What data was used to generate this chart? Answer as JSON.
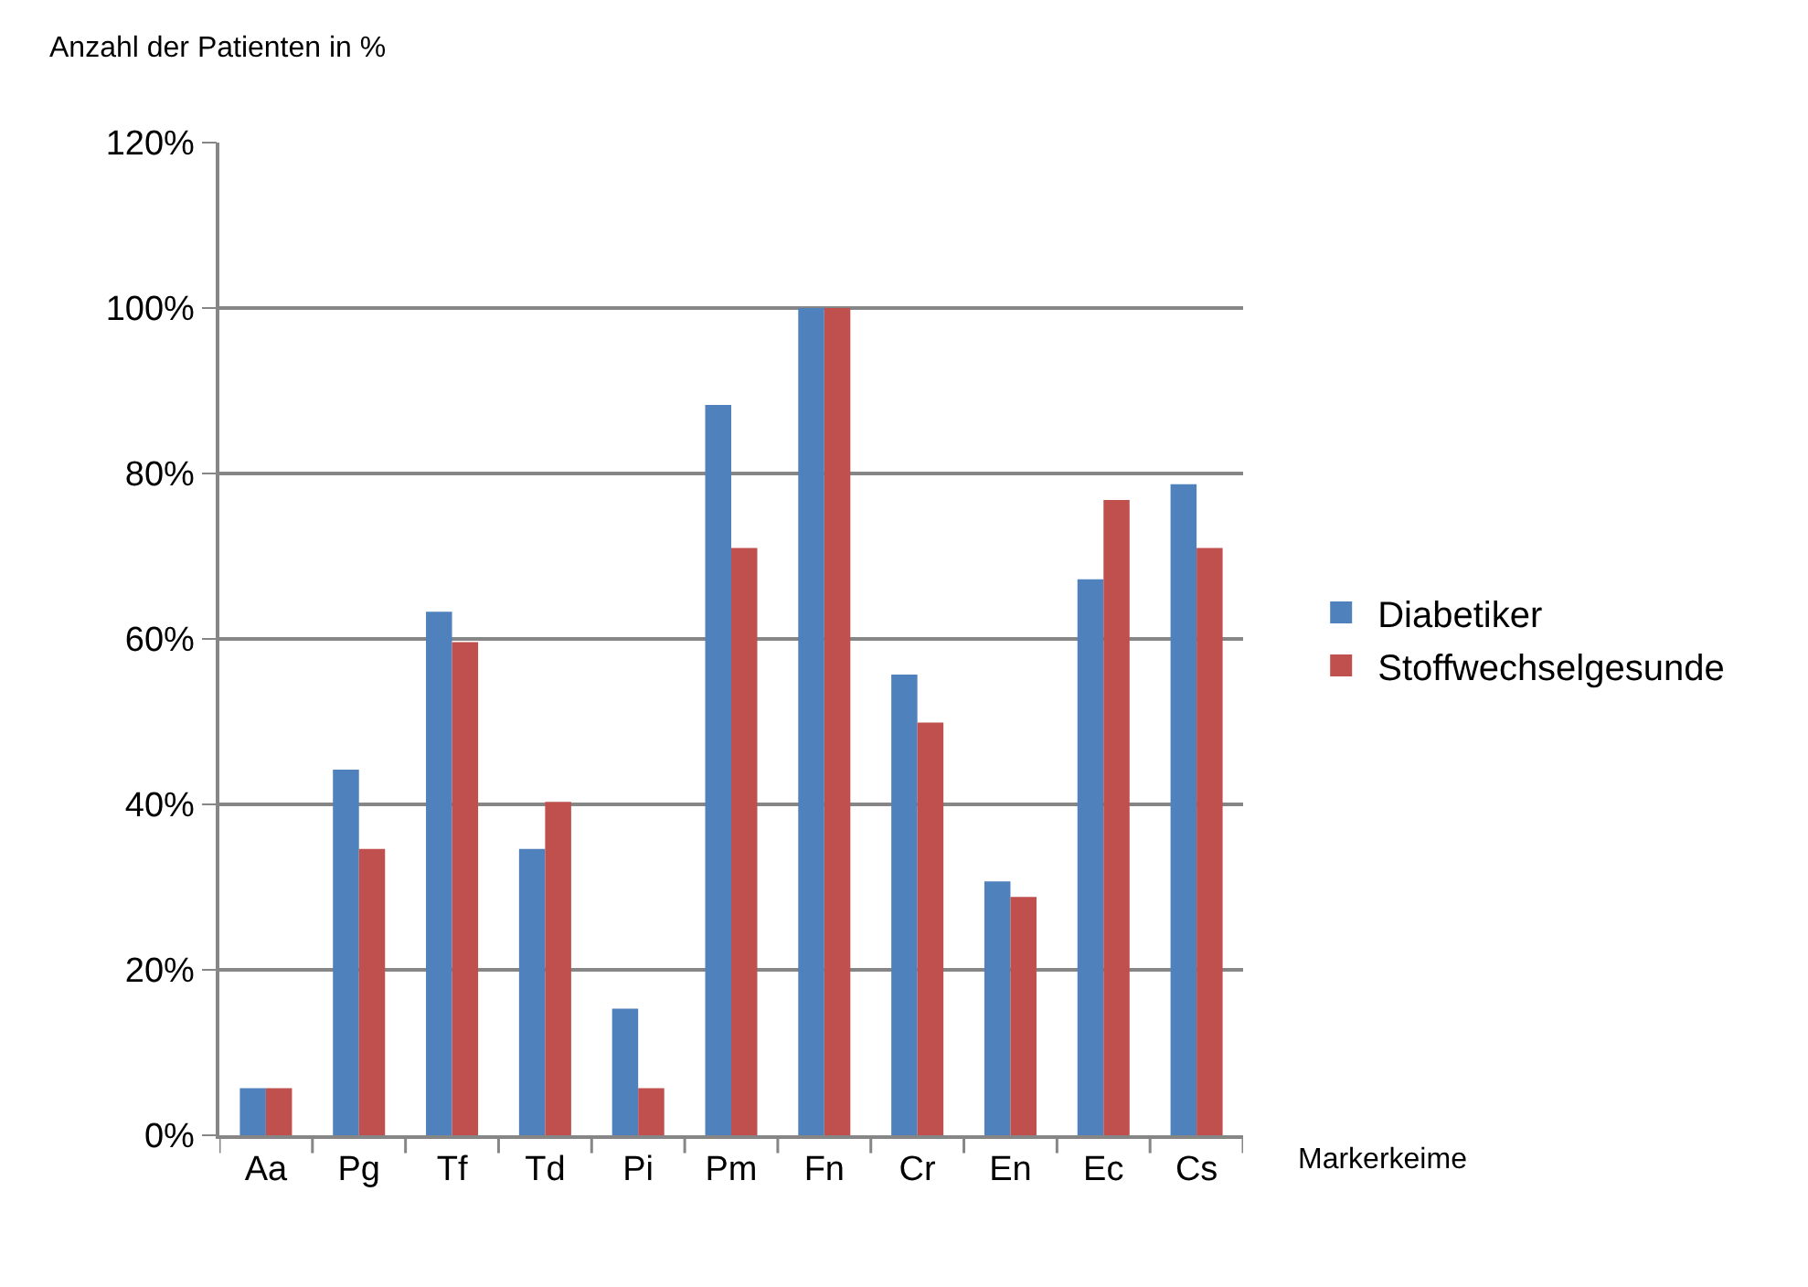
{
  "chart_data": {
    "type": "bar",
    "xlabel": "Markerkeime",
    "ylabel": "Anzahl der Patienten in %",
    "categories": [
      "Aa",
      "Pg",
      "Tf",
      "Td",
      "Pi",
      "Pm",
      "Fn",
      "Cr",
      "En",
      "Ec",
      "Cs"
    ],
    "series": [
      {
        "name": "Diabetiker",
        "color": "#4f81bd",
        "values": [
          5.7,
          44.2,
          63.3,
          34.6,
          15.3,
          88.3,
          100,
          55.7,
          30.7,
          67.2,
          78.7
        ]
      },
      {
        "name": "Stoffwechselgesunde",
        "color": "#c0504d",
        "values": [
          5.7,
          34.6,
          59.6,
          40.3,
          5.7,
          71.0,
          100,
          49.9,
          28.8,
          76.8,
          71.0
        ]
      }
    ],
    "ylim": [
      0,
      120
    ],
    "yticks": [
      {
        "value": 0,
        "label": "0%"
      },
      {
        "value": 20,
        "label": "20%"
      },
      {
        "value": 40,
        "label": "40%"
      },
      {
        "value": 60,
        "label": "60%"
      },
      {
        "value": 80,
        "label": "80%"
      },
      {
        "value": 100,
        "label": "100%"
      },
      {
        "value": 120,
        "label": "120%"
      }
    ],
    "grid": "y",
    "legend": "right"
  }
}
